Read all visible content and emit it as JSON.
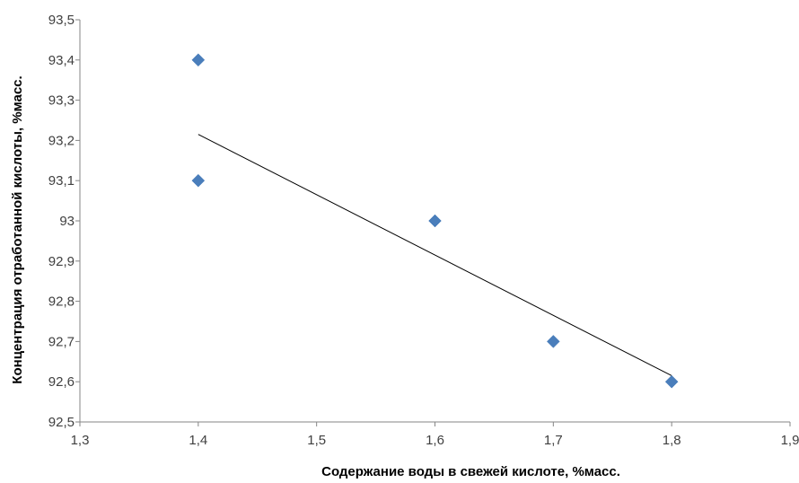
{
  "chart_data": {
    "type": "scatter",
    "title": "",
    "xlabel": "Содержание воды в свежей кислоте, %масс.",
    "ylabel": "Концентрация отработанной кислоты, %масс.",
    "xlim": [
      1.3,
      1.9
    ],
    "ylim": [
      92.5,
      93.5
    ],
    "x_ticks": [
      1.3,
      1.4,
      1.5,
      1.6,
      1.7,
      1.8,
      1.9
    ],
    "x_tick_labels": [
      "1,3",
      "1,4",
      "1,5",
      "1,6",
      "1,7",
      "1,8",
      "1,9"
    ],
    "y_ticks": [
      92.5,
      92.6,
      92.7,
      92.8,
      92.9,
      93.0,
      93.1,
      93.2,
      93.3,
      93.4,
      93.5
    ],
    "y_tick_labels": [
      "92,5",
      "92,6",
      "92,7",
      "92,8",
      "92,9",
      "93",
      "93,1",
      "93,2",
      "93,3",
      "93,4",
      "93,5"
    ],
    "grid": false,
    "legend": "none",
    "series": [
      {
        "marker": "diamond",
        "color": "#4a7ebb",
        "points": [
          {
            "x": 1.4,
            "y": 93.4
          },
          {
            "x": 1.4,
            "y": 93.1
          },
          {
            "x": 1.6,
            "y": 93.0
          },
          {
            "x": 1.7,
            "y": 92.7
          },
          {
            "x": 1.8,
            "y": 92.6
          }
        ]
      }
    ],
    "trendline": {
      "type": "linear",
      "color": "#000000",
      "from": {
        "x": 1.4,
        "y": 93.215
      },
      "to": {
        "x": 1.8,
        "y": 92.615
      }
    }
  }
}
